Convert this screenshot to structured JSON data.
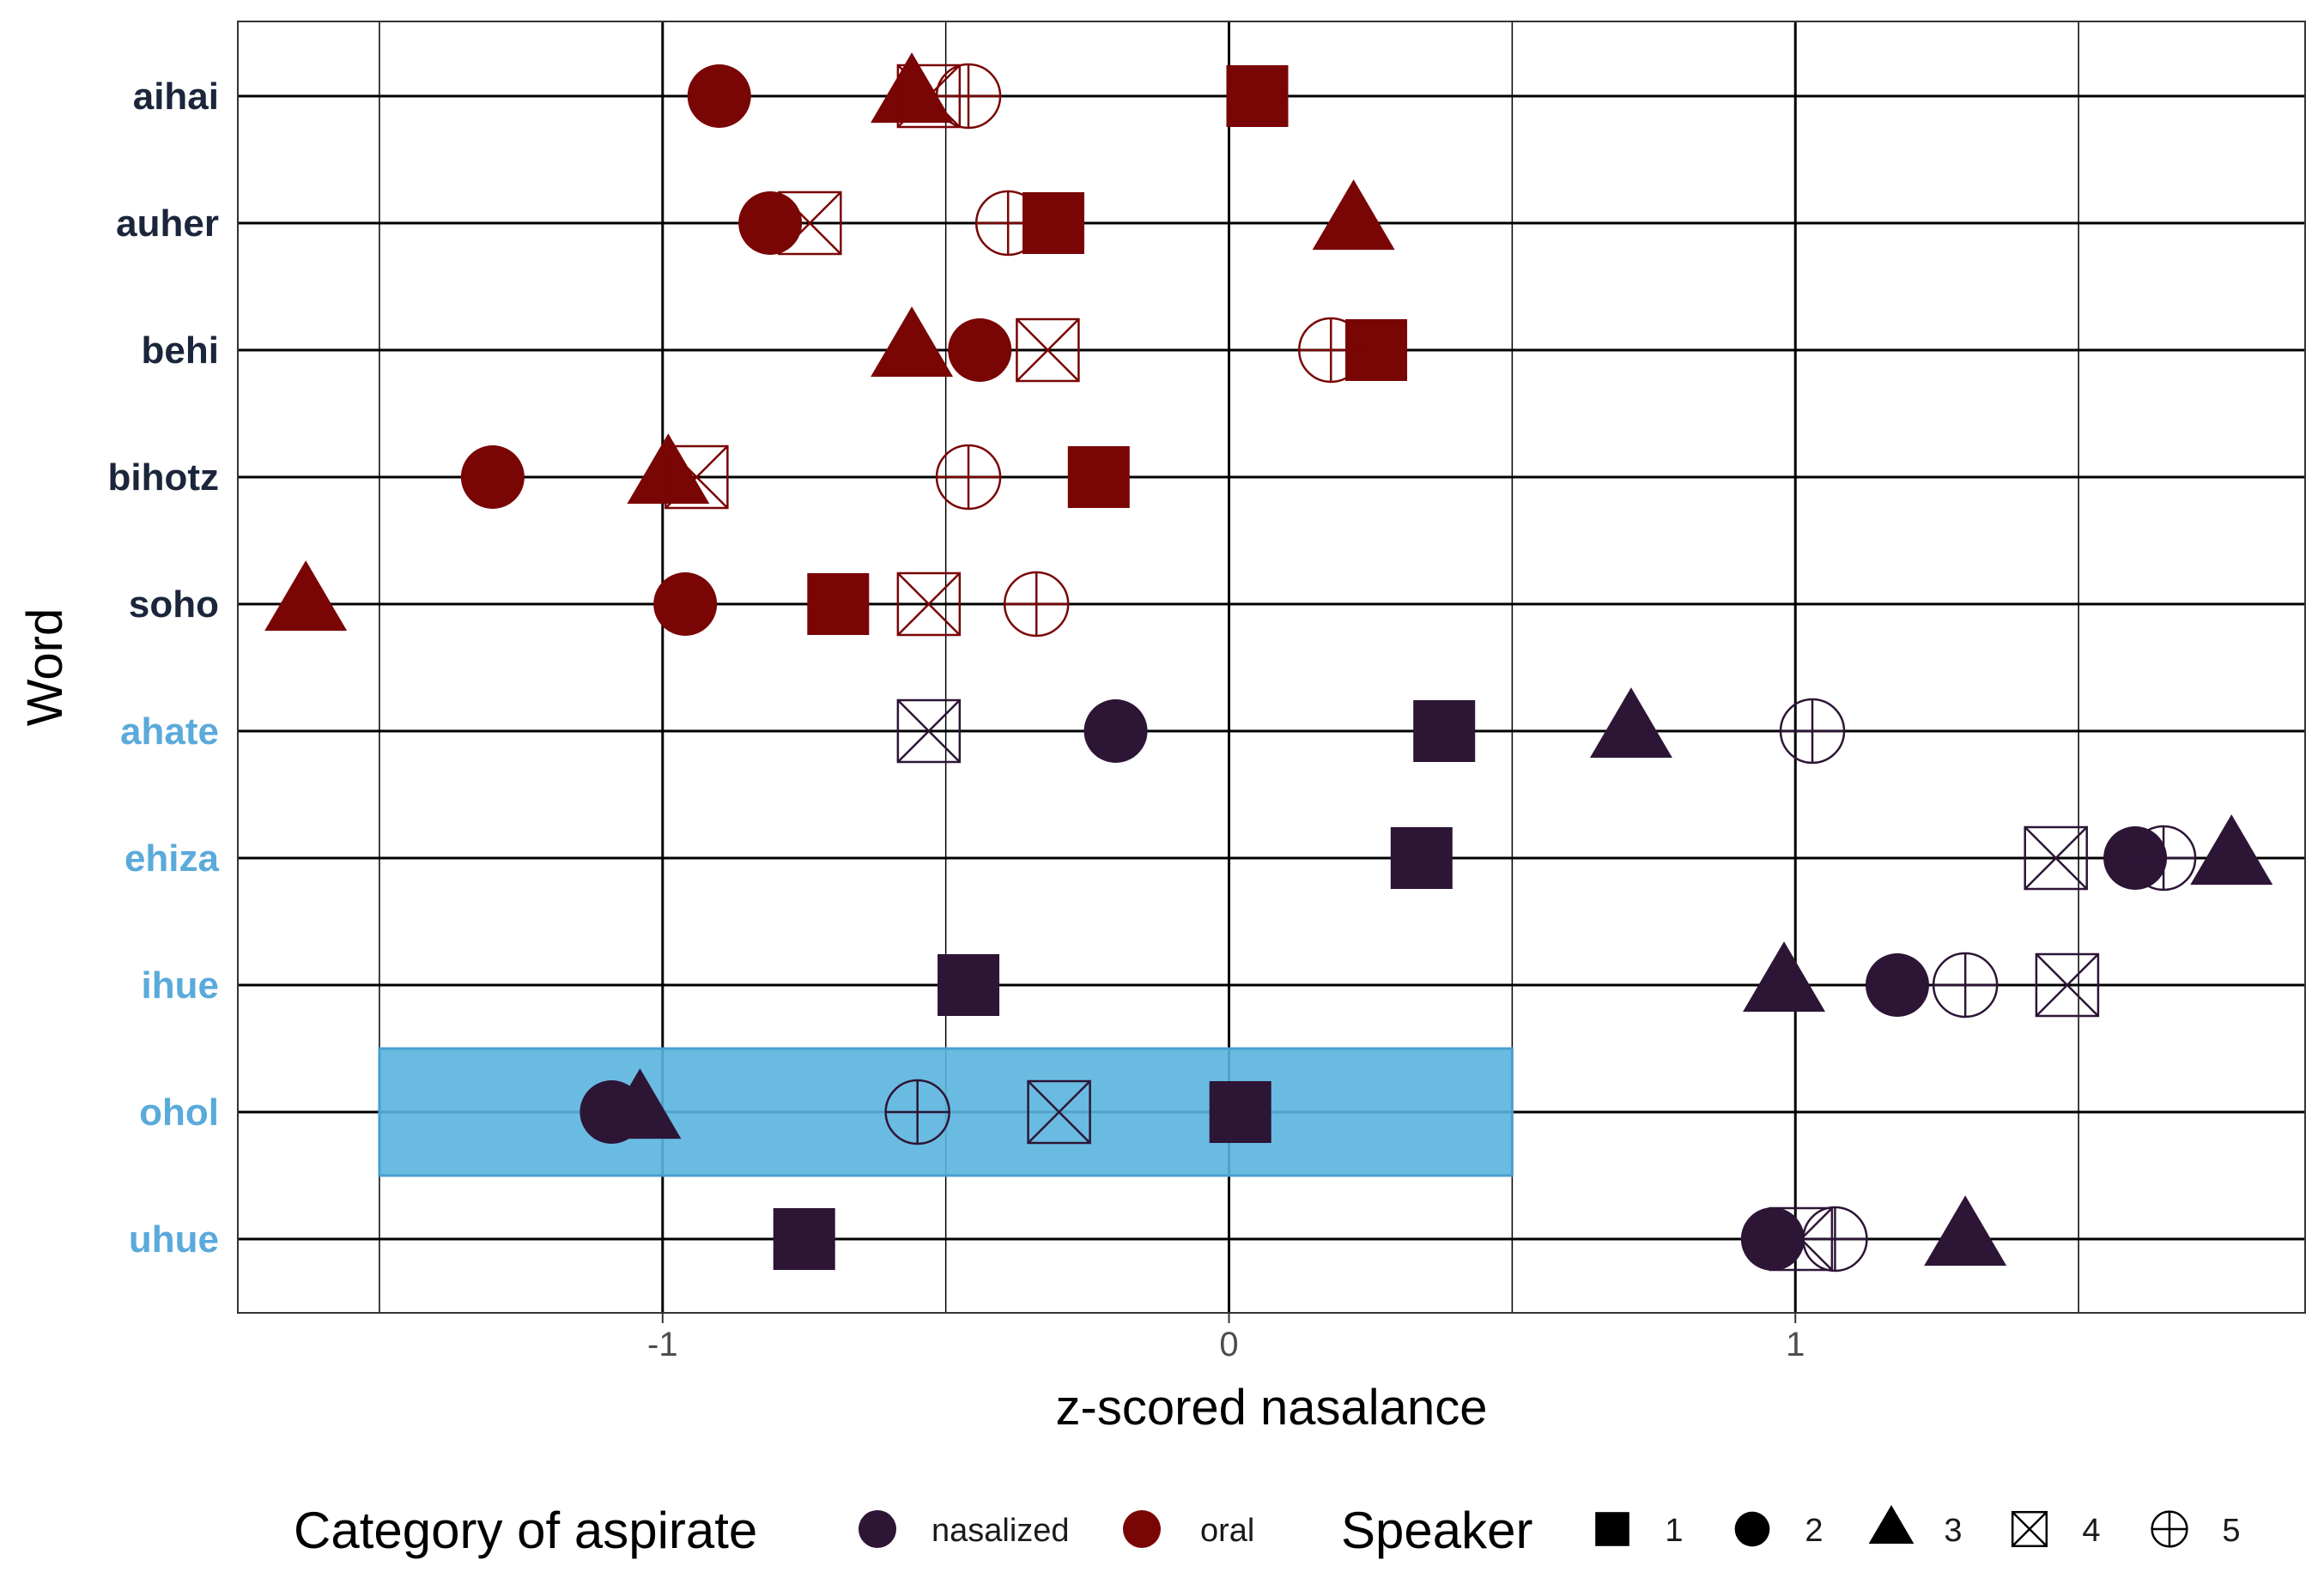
{
  "chart_data": {
    "type": "scatter",
    "xlabel": "z-scored nasalance",
    "ylabel": "Word",
    "xlim": [
      -1.75,
      1.9
    ],
    "x_ticks": [
      -1,
      0,
      1
    ],
    "x_tick_labels": [
      "-1",
      "0",
      "1"
    ],
    "x_minor_gridlines": [
      -1.5,
      -0.5,
      0.5,
      1.5
    ],
    "grid": true,
    "categories": [
      "aihai",
      "auher",
      "behi",
      "bihotz",
      "soho",
      "ahate",
      "ehiza",
      "ihue",
      "ohol",
      "uhue"
    ],
    "word_category": {
      "aihai": "oral",
      "auher": "oral",
      "behi": "oral",
      "bihotz": "oral",
      "soho": "oral",
      "ahate": "nasalized",
      "ehiza": "nasalized",
      "ihue": "nasalized",
      "ohol": "nasalized",
      "uhue": "nasalized"
    },
    "colors": {
      "nasalized": "#2d1536",
      "oral": "#7a0505",
      "nasalized_label": "#5aaadb",
      "oral_label": "#1b263b",
      "highlight": "#5ab4de"
    },
    "highlight": {
      "word": "ohol",
      "x_range": [
        -1.5,
        0.5
      ]
    },
    "shape_names": {
      "1": "filled-square",
      "2": "filled-circle",
      "3": "filled-triangle",
      "4": "square-cross",
      "5": "circle-plus"
    },
    "series": [
      {
        "name": "1",
        "points": [
          {
            "word": "aihai",
            "x": 0.05
          },
          {
            "word": "auher",
            "x": -0.31
          },
          {
            "word": "behi",
            "x": 0.26
          },
          {
            "word": "bihotz",
            "x": -0.23
          },
          {
            "word": "soho",
            "x": -0.69
          },
          {
            "word": "ahate",
            "x": 0.38
          },
          {
            "word": "ehiza",
            "x": 0.34
          },
          {
            "word": "ihue",
            "x": -0.46
          },
          {
            "word": "ohol",
            "x": 0.02
          },
          {
            "word": "uhue",
            "x": -0.75
          }
        ]
      },
      {
        "name": "2",
        "points": [
          {
            "word": "aihai",
            "x": -0.9
          },
          {
            "word": "auher",
            "x": -0.81
          },
          {
            "word": "behi",
            "x": -0.44
          },
          {
            "word": "bihotz",
            "x": -1.3
          },
          {
            "word": "soho",
            "x": -0.96
          },
          {
            "word": "ahate",
            "x": -0.2
          },
          {
            "word": "ehiza",
            "x": 1.6
          },
          {
            "word": "ihue",
            "x": 1.18
          },
          {
            "word": "ohol",
            "x": -1.09
          },
          {
            "word": "uhue",
            "x": 0.96
          }
        ]
      },
      {
        "name": "3",
        "points": [
          {
            "word": "aihai",
            "x": -0.56
          },
          {
            "word": "auher",
            "x": 0.22
          },
          {
            "word": "behi",
            "x": -0.56
          },
          {
            "word": "bihotz",
            "x": -0.99
          },
          {
            "word": "soho",
            "x": -1.63
          },
          {
            "word": "ahate",
            "x": 0.71
          },
          {
            "word": "ehiza",
            "x": 1.77
          },
          {
            "word": "ihue",
            "x": 0.98
          },
          {
            "word": "ohol",
            "x": -1.04
          },
          {
            "word": "uhue",
            "x": 1.3
          }
        ]
      },
      {
        "name": "4",
        "points": [
          {
            "word": "aihai",
            "x": -0.53
          },
          {
            "word": "auher",
            "x": -0.74
          },
          {
            "word": "behi",
            "x": -0.32
          },
          {
            "word": "bihotz",
            "x": -0.94
          },
          {
            "word": "soho",
            "x": -0.53
          },
          {
            "word": "ahate",
            "x": -0.53
          },
          {
            "word": "ehiza",
            "x": 1.46
          },
          {
            "word": "ihue",
            "x": 1.48
          },
          {
            "word": "ohol",
            "x": -0.3
          },
          {
            "word": "uhue",
            "x": 1.01
          }
        ]
      },
      {
        "name": "5",
        "points": [
          {
            "word": "aihai",
            "x": -0.46
          },
          {
            "word": "auher",
            "x": -0.39
          },
          {
            "word": "behi",
            "x": 0.18
          },
          {
            "word": "bihotz",
            "x": -0.46
          },
          {
            "word": "soho",
            "x": -0.34
          },
          {
            "word": "ahate",
            "x": 1.03
          },
          {
            "word": "ehiza",
            "x": 1.65
          },
          {
            "word": "ihue",
            "x": 1.3
          },
          {
            "word": "ohol",
            "x": -0.55
          },
          {
            "word": "uhue",
            "x": 1.07
          }
        ]
      }
    ],
    "legend": {
      "placement": "bottom",
      "color_title": "Category of aspirate",
      "color_items": [
        {
          "key": "nasalized",
          "label": "nasalized"
        },
        {
          "key": "oral",
          "label": "oral"
        }
      ],
      "shape_title": "Speaker",
      "shape_items": [
        {
          "key": "1",
          "label": "1"
        },
        {
          "key": "2",
          "label": "2"
        },
        {
          "key": "3",
          "label": "3"
        },
        {
          "key": "4",
          "label": "4"
        },
        {
          "key": "5",
          "label": "5"
        }
      ]
    }
  }
}
